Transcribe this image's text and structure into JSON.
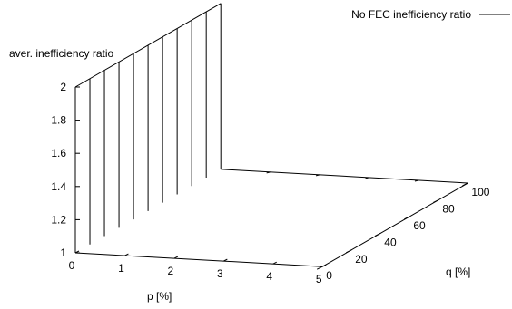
{
  "chart_data": {
    "type": "surface-3d",
    "zlabel": "aver. inefficiency ratio",
    "xlabel": "p [%]",
    "ylabel": "q [%]",
    "legend_position": "top-right",
    "x_ticks": [
      "0",
      "1",
      "2",
      "3",
      "4",
      "5"
    ],
    "y_ticks": [
      "0",
      "20",
      "40",
      "60",
      "80",
      "100"
    ],
    "z_ticks": [
      "1",
      "1.2",
      "1.4",
      "1.6",
      "1.8",
      "2"
    ],
    "xlim": [
      0,
      5
    ],
    "ylim": [
      0,
      100
    ],
    "zlim": [
      1,
      2
    ],
    "series": [
      {
        "name": "No FEC inefficiency ratio",
        "x": 0,
        "z_range": [
          1,
          2
        ],
        "y": [
          0,
          10,
          20,
          30,
          40,
          50,
          60,
          70,
          80,
          90,
          100
        ],
        "color": "#000000"
      }
    ]
  }
}
